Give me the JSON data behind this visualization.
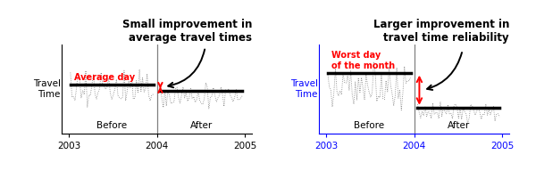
{
  "fig_width": 6.0,
  "fig_height": 1.92,
  "dpi": 100,
  "chart1": {
    "title": "Small improvement in\naverage travel times",
    "ylabel": "Travel\nTime",
    "ylabel_color": "black",
    "axis_color": "black",
    "xlabel_before": "Before",
    "xlabel_after": "After",
    "xtick_labels": [
      "2003",
      "2004",
      "2005"
    ],
    "avg_before": 0.58,
    "avg_after": 0.5,
    "label_text": "Average day",
    "label_color": "red"
  },
  "chart2": {
    "title": "Larger improvement in\ntravel time reliability",
    "ylabel": "Travel\nTime",
    "ylabel_color": "blue",
    "axis_color": "blue",
    "xlabel_before": "Before",
    "xlabel_after": "After",
    "xtick_labels": [
      "2003",
      "2004",
      "2005"
    ],
    "avg_before": 0.75,
    "avg_after": 0.32,
    "label_text": "Worst day\nof the month",
    "label_color": "red"
  }
}
